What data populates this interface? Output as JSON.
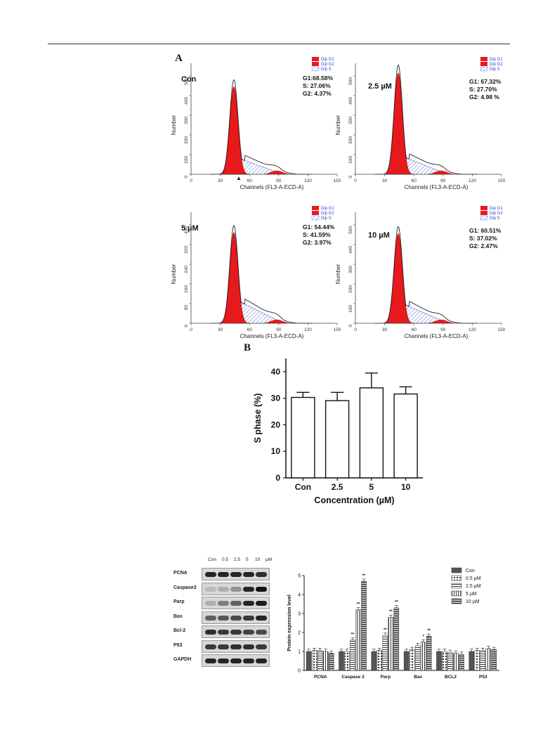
{
  "panels": {
    "a_label": "A",
    "b_label": "B"
  },
  "legend_items": [
    "Dip G1",
    "Dip G2",
    "Dip S"
  ],
  "histograms": [
    {
      "label": "Con",
      "stats": [
        "G1:68.58%",
        "S: 27.06%",
        "G2: 4.37%"
      ],
      "yticks": [
        "0",
        "100",
        "200",
        "300",
        "400",
        "500"
      ],
      "xticks": [
        "0",
        "30",
        "60",
        "90",
        "120",
        "150"
      ]
    },
    {
      "label": "2.5 µM",
      "stats": [
        "G1: 67.32%",
        "S: 27.70%",
        "G2: 4.98 %"
      ],
      "yticks": [
        "0",
        "100",
        "200",
        "300",
        "400",
        "500"
      ],
      "xticks": [
        "0",
        "30",
        "60",
        "90",
        "120",
        "150"
      ]
    },
    {
      "label": "5 µM",
      "stats": [
        "G1: 54.44%",
        "S: 41.59%",
        "G2: 3.97%"
      ],
      "yticks": [
        "0",
        "80",
        "160",
        "240",
        "320",
        "400"
      ],
      "xticks": [
        "0",
        "30",
        "60",
        "90",
        "120",
        "150"
      ]
    },
    {
      "label": "10 µM",
      "stats": [
        "G1: 60.51%",
        "S: 37.02%",
        "G2: 2.47%"
      ],
      "yticks": [
        "0",
        "100",
        "200",
        "300",
        "400",
        "500"
      ],
      "xticks": [
        "0",
        "30",
        "60",
        "90",
        "120",
        "150"
      ]
    }
  ],
  "hist_xlabel": "Channels (FL3-A-ECD-A)",
  "hist_ylabel": "Number",
  "colors": {
    "g1": "#e8191c",
    "s_hatch": "#5a6fd6",
    "bar_fill": "#ffffff",
    "legend_text": "#3344cc"
  },
  "chart_data": [
    {
      "type": "bar",
      "categories": [
        "Con",
        "2.5",
        "5",
        "10"
      ],
      "values": [
        30.3,
        29.1,
        33.9,
        31.6
      ],
      "errors": [
        1.9,
        3.1,
        5.6,
        2.7
      ],
      "xlabel": "Concentration (µM)",
      "ylabel": "S phase (%)",
      "ylim": [
        0,
        45
      ],
      "yticks": [
        "0",
        "10",
        "20",
        "30",
        "40"
      ]
    },
    {
      "type": "bar",
      "categories": [
        "PCNA",
        "Caspase 3",
        "Parp",
        "Bax",
        "BCL2",
        "P53"
      ],
      "ylabel": "Protein expression level",
      "ylim": [
        0,
        5
      ],
      "yticks": [
        "0",
        "1",
        "2",
        "3",
        "4",
        "5"
      ],
      "series": [
        {
          "name": "Con",
          "values": [
            1.0,
            1.0,
            1.0,
            1.0,
            1.0,
            1.0
          ]
        },
        {
          "name": "0.5 µM",
          "values": [
            1.05,
            1.0,
            1.05,
            1.1,
            1.0,
            1.05
          ]
        },
        {
          "name": "2.5 µM",
          "values": [
            1.05,
            1.6,
            1.85,
            1.3,
            0.95,
            1.05
          ]
        },
        {
          "name": "5  µM",
          "values": [
            1.0,
            3.2,
            2.8,
            1.5,
            0.9,
            1.15
          ]
        },
        {
          "name": "10  µM",
          "values": [
            0.9,
            4.7,
            3.3,
            1.8,
            0.85,
            1.1
          ]
        }
      ],
      "annotations": [
        {
          "category": "Caspase 3",
          "series": [
            "2.5 µM",
            "5  µM",
            "10  µM"
          ],
          "text": "**"
        },
        {
          "category": "Parp",
          "series": [
            "2.5 µM",
            "5  µM",
            "10  µM"
          ],
          "text": "**"
        },
        {
          "category": "Bax",
          "series": [
            "5  µM"
          ],
          "text": "*"
        },
        {
          "category": "Bax",
          "series": [
            "10  µM"
          ],
          "text": "**"
        }
      ]
    }
  ],
  "western": {
    "header": [
      "Con",
      "0.5",
      "2.5",
      "5",
      "10",
      "µM"
    ],
    "rows": [
      {
        "label": "PCNA",
        "bands": [
          0.9,
          0.9,
          0.9,
          0.9,
          0.85
        ]
      },
      {
        "label": "Caspase3",
        "bands": [
          0.15,
          0.2,
          0.35,
          0.9,
          1.0
        ]
      },
      {
        "label": "Parp",
        "bands": [
          0.2,
          0.45,
          0.6,
          0.9,
          0.95
        ]
      },
      {
        "label": "Bax",
        "bands": [
          0.6,
          0.65,
          0.7,
          0.8,
          0.9
        ]
      },
      {
        "label": "Bcl-2",
        "bands": [
          0.85,
          0.8,
          0.8,
          0.75,
          0.7
        ]
      },
      {
        "label": "P53",
        "bands": [
          0.8,
          0.8,
          0.85,
          0.85,
          0.8
        ]
      },
      {
        "label": "GAPDH",
        "bands": [
          0.9,
          0.9,
          0.9,
          0.9,
          0.9
        ]
      }
    ]
  }
}
